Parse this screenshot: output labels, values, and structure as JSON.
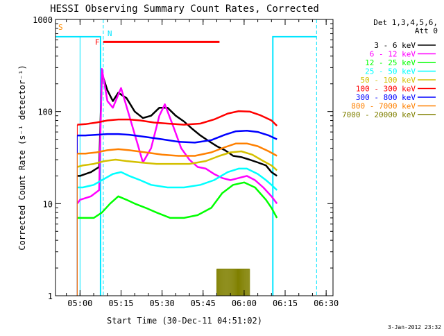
{
  "chart_data": {
    "type": "line",
    "title": "HESSI Observing Summary Count Rates, Corrected",
    "xlabel": "Start Time (30-Dec-11 04:51:02)",
    "ylabel": "Corrected Count Rate (s⁻¹ detector⁻¹)",
    "y_scale": "log",
    "ylim": [
      1,
      1000
    ],
    "xlim": [
      "04:51:02",
      "06:32:30"
    ],
    "x_tick_labels": [
      "05:00",
      "05:15",
      "05:30",
      "05:45",
      "06:00",
      "06:15",
      "06:30"
    ],
    "y_tick_labels": [
      "1",
      "10",
      "100",
      "1000"
    ],
    "legend_title_line1": "Det 1,3,4,5,6,",
    "legend_title_line2": "Att 0",
    "legend_placement": "right",
    "footer_date": "3-Jan-2012 23:32",
    "flags": {
      "S_label": "S",
      "N_label": "N",
      "F_label": "F"
    },
    "series": [
      {
        "name": "3 - 6 keV",
        "color": "#000000",
        "points": [
          [
            "04:59:00",
            20
          ],
          [
            "05:00:00",
            20
          ],
          [
            "05:04:00",
            22
          ],
          [
            "05:07:00",
            25
          ],
          [
            "05:08:00",
            260
          ],
          [
            "05:10:00",
            170
          ],
          [
            "05:12:00",
            130
          ],
          [
            "05:14:00",
            160
          ],
          [
            "05:17:00",
            140
          ],
          [
            "05:20:00",
            100
          ],
          [
            "05:23:00",
            85
          ],
          [
            "05:26:00",
            90
          ],
          [
            "05:29:00",
            110
          ],
          [
            "05:32:00",
            110
          ],
          [
            "05:35:00",
            90
          ],
          [
            "05:38:00",
            78
          ],
          [
            "05:41:00",
            65
          ],
          [
            "05:44:00",
            55
          ],
          [
            "05:47:00",
            48
          ],
          [
            "05:50:00",
            42
          ],
          [
            "05:53:00",
            38
          ],
          [
            "05:56:00",
            33
          ],
          [
            "05:59:00",
            32
          ],
          [
            "06:02:00",
            30
          ],
          [
            "06:05:00",
            28
          ],
          [
            "06:08:00",
            26
          ],
          [
            "06:10:00",
            22
          ],
          [
            "06:12:00",
            20
          ]
        ]
      },
      {
        "name": "6 - 12 keV",
        "color": "#ff00ff",
        "points": [
          [
            "04:59:00",
            10
          ],
          [
            "05:00:00",
            11
          ],
          [
            "05:04:00",
            12
          ],
          [
            "05:07:00",
            14
          ],
          [
            "05:08:00",
            290
          ],
          [
            "05:10:00",
            130
          ],
          [
            "05:12:00",
            110
          ],
          [
            "05:15:00",
            180
          ],
          [
            "05:18:00",
            90
          ],
          [
            "05:21:00",
            45
          ],
          [
            "05:23:00",
            28
          ],
          [
            "05:26:00",
            40
          ],
          [
            "05:29:00",
            90
          ],
          [
            "05:31:00",
            120
          ],
          [
            "05:34:00",
            70
          ],
          [
            "05:37:00",
            40
          ],
          [
            "05:40:00",
            30
          ],
          [
            "05:43:00",
            25
          ],
          [
            "05:46:00",
            24
          ],
          [
            "05:49:00",
            21
          ],
          [
            "05:52:00",
            19
          ],
          [
            "05:55:00",
            18
          ],
          [
            "05:58:00",
            19
          ],
          [
            "06:01:00",
            20
          ],
          [
            "06:04:00",
            18
          ],
          [
            "06:07:00",
            15
          ],
          [
            "06:10:00",
            12
          ],
          [
            "06:12:00",
            10
          ]
        ]
      },
      {
        "name": "12 - 25 keV",
        "color": "#00ff00",
        "points": [
          [
            "04:59:00",
            7
          ],
          [
            "05:01:00",
            7
          ],
          [
            "05:05:00",
            7
          ],
          [
            "05:08:00",
            8
          ],
          [
            "05:11:00",
            10
          ],
          [
            "05:14:00",
            12
          ],
          [
            "05:17:00",
            11
          ],
          [
            "05:20:00",
            10
          ],
          [
            "05:24:00",
            9
          ],
          [
            "05:28:00",
            8
          ],
          [
            "05:33:00",
            7
          ],
          [
            "05:38:00",
            7
          ],
          [
            "05:43:00",
            7.5
          ],
          [
            "05:48:00",
            9
          ],
          [
            "05:52:00",
            13
          ],
          [
            "05:56:00",
            16
          ],
          [
            "06:00:00",
            17
          ],
          [
            "06:04:00",
            15
          ],
          [
            "06:08:00",
            11
          ],
          [
            "06:10:00",
            9
          ],
          [
            "06:12:00",
            7
          ]
        ]
      },
      {
        "name": "25 - 50 keV",
        "color": "#00ffff",
        "points": [
          [
            "04:59:00",
            15
          ],
          [
            "05:01:00",
            15
          ],
          [
            "05:05:00",
            16
          ],
          [
            "05:08:00",
            18
          ],
          [
            "05:12:00",
            21
          ],
          [
            "05:15:00",
            22
          ],
          [
            "05:18:00",
            20
          ],
          [
            "05:22:00",
            18
          ],
          [
            "05:26:00",
            16
          ],
          [
            "05:32:00",
            15
          ],
          [
            "05:38:00",
            15
          ],
          [
            "05:44:00",
            16
          ],
          [
            "05:49:00",
            18
          ],
          [
            "05:54:00",
            22
          ],
          [
            "05:58:00",
            24
          ],
          [
            "06:01:00",
            24
          ],
          [
            "06:05:00",
            21
          ],
          [
            "06:08:00",
            18
          ],
          [
            "06:10:00",
            16
          ],
          [
            "06:12:00",
            14
          ]
        ]
      },
      {
        "name": "50 - 100 keV",
        "color": "#d4c000",
        "points": [
          [
            "04:59:00",
            25
          ],
          [
            "05:01:00",
            26
          ],
          [
            "05:05:00",
            27
          ],
          [
            "05:09:00",
            29
          ],
          [
            "05:13:00",
            30
          ],
          [
            "05:17:00",
            29
          ],
          [
            "05:22:00",
            28
          ],
          [
            "05:28:00",
            27
          ],
          [
            "05:34:00",
            27
          ],
          [
            "05:40:00",
            27
          ],
          [
            "05:46:00",
            29
          ],
          [
            "05:51:00",
            33
          ],
          [
            "05:55:00",
            36
          ],
          [
            "05:59:00",
            37
          ],
          [
            "06:03:00",
            34
          ],
          [
            "06:07:00",
            29
          ],
          [
            "06:10:00",
            26
          ],
          [
            "06:12:00",
            23
          ]
        ]
      },
      {
        "name": "100 - 300 keV",
        "color": "#ff0000",
        "points": [
          [
            "04:59:00",
            72
          ],
          [
            "05:02:00",
            73
          ],
          [
            "05:06:00",
            76
          ],
          [
            "05:10:00",
            80
          ],
          [
            "05:14:00",
            82
          ],
          [
            "05:18:00",
            82
          ],
          [
            "05:22:00",
            80
          ],
          [
            "05:27:00",
            76
          ],
          [
            "05:32:00",
            74
          ],
          [
            "05:38:00",
            72
          ],
          [
            "05:44:00",
            74
          ],
          [
            "05:49:00",
            82
          ],
          [
            "05:54:00",
            95
          ],
          [
            "05:58:00",
            101
          ],
          [
            "06:02:00",
            100
          ],
          [
            "06:06:00",
            91
          ],
          [
            "06:10:00",
            80
          ],
          [
            "06:12:00",
            70
          ]
        ]
      },
      {
        "name": "300 - 800 keV",
        "color": "#0000ff",
        "points": [
          [
            "04:59:00",
            55
          ],
          [
            "05:02:00",
            55
          ],
          [
            "05:06:00",
            56
          ],
          [
            "05:10:00",
            57
          ],
          [
            "05:14:00",
            57
          ],
          [
            "05:18:00",
            56
          ],
          [
            "05:24:00",
            53
          ],
          [
            "05:30:00",
            50
          ],
          [
            "05:36:00",
            47
          ],
          [
            "05:42:00",
            46
          ],
          [
            "05:48:00",
            49
          ],
          [
            "05:53:00",
            56
          ],
          [
            "05:57:00",
            61
          ],
          [
            "06:01:00",
            62
          ],
          [
            "06:05:00",
            60
          ],
          [
            "06:09:00",
            55
          ],
          [
            "06:12:00",
            50
          ]
        ]
      },
      {
        "name": "800 - 7000 keV",
        "color": "#ff8000",
        "points": [
          [
            "04:59:00",
            35
          ],
          [
            "05:02:00",
            35
          ],
          [
            "05:06:00",
            36
          ],
          [
            "05:10:00",
            38
          ],
          [
            "05:14:00",
            39
          ],
          [
            "05:18:00",
            38
          ],
          [
            "05:24:00",
            36
          ],
          [
            "05:30:00",
            34
          ],
          [
            "05:36:00",
            33
          ],
          [
            "05:42:00",
            33
          ],
          [
            "05:48:00",
            36
          ],
          [
            "05:53:00",
            41
          ],
          [
            "05:57:00",
            45
          ],
          [
            "06:01:00",
            45
          ],
          [
            "06:05:00",
            42
          ],
          [
            "06:09:00",
            37
          ],
          [
            "06:12:00",
            33
          ]
        ]
      },
      {
        "name": "7000 - 20000 keV",
        "color": "#808000",
        "points": [
          [
            "05:50:00",
            1.95
          ],
          [
            "06:02:00",
            1.95
          ]
        ]
      }
    ]
  }
}
